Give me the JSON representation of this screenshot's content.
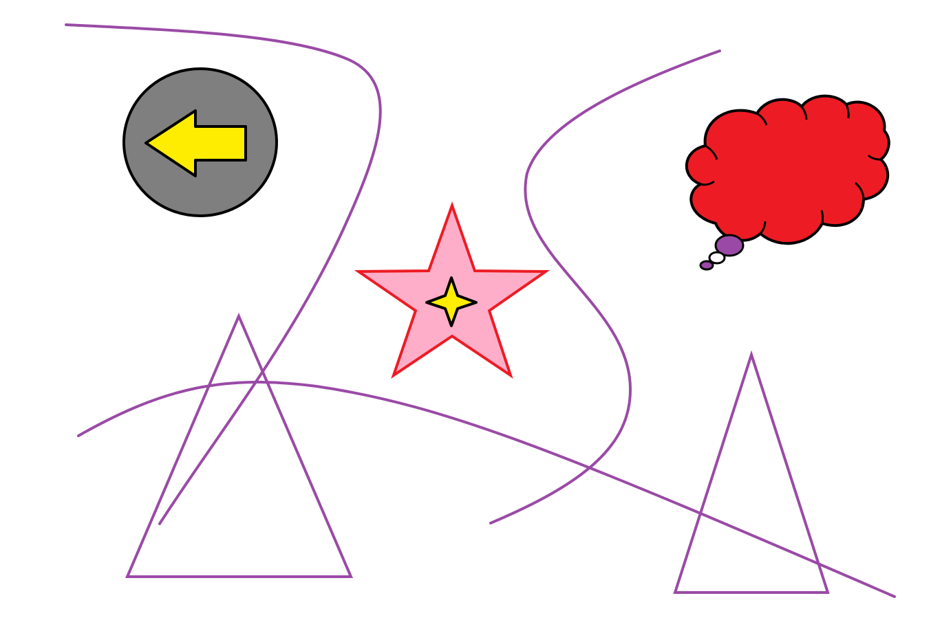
{
  "canvas": {
    "background": "#ffffff"
  },
  "colors": {
    "line_purple": "#9a4aa6",
    "outline_black": "#000000",
    "arrow_yellow": "#ffed00",
    "circle_gray": "#7f7f7f",
    "star_pink": "#ffaec9",
    "star_red": "#ed1c24",
    "cloud_red": "#ed1c24",
    "bubble_purple": "#9a4aa6",
    "bubble_white": "#ffffff"
  },
  "shapes": [
    {
      "name": "gray-circle",
      "kind": "circle",
      "fill": "gray"
    },
    {
      "name": "left-arrow",
      "kind": "arrow",
      "direction": "left",
      "fill": "yellow"
    },
    {
      "name": "pink-star",
      "kind": "five-point-star",
      "fill": "pink",
      "stroke": "red"
    },
    {
      "name": "yellow-sparkle",
      "kind": "four-point-star",
      "fill": "yellow"
    },
    {
      "name": "thought-cloud",
      "kind": "cloud",
      "fill": "red"
    },
    {
      "name": "left-triangle",
      "kind": "triangle",
      "stroke": "purple"
    },
    {
      "name": "right-triangle",
      "kind": "triangle",
      "stroke": "purple"
    },
    {
      "name": "curve-top-left",
      "kind": "curve",
      "stroke": "purple"
    },
    {
      "name": "curve-top-right",
      "kind": "curve",
      "stroke": "purple"
    },
    {
      "name": "curve-bottom",
      "kind": "curve",
      "stroke": "purple"
    }
  ]
}
